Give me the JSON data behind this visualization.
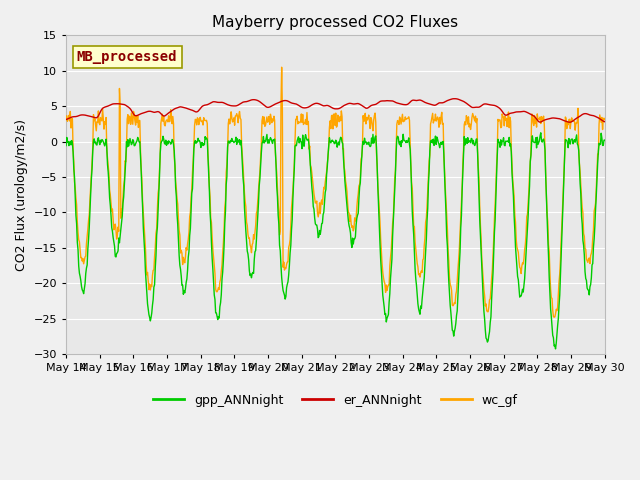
{
  "title": "Mayberry processed CO2 Fluxes",
  "ylabel": "CO2 Flux (urology/m2/s)",
  "ylim": [
    -30,
    15
  ],
  "yticks": [
    -30,
    -25,
    -20,
    -15,
    -10,
    -5,
    0,
    5,
    10,
    15
  ],
  "fig_bg_color": "#f0f0f0",
  "plot_bg_color": "#e8e8e8",
  "legend_label": "MB_processed",
  "legend_text_color": "#8b0000",
  "legend_box_facecolor": "#ffffcc",
  "legend_box_edgecolor": "#999900",
  "line_colors": {
    "gpp": "#00cc00",
    "er": "#cc0000",
    "wc": "#ffa500"
  },
  "line_width": 1.0,
  "n_days": 16,
  "start_day": 14,
  "points_per_day": 48,
  "seed": 42,
  "grid_color": "#ffffff",
  "grid_linewidth": 0.8,
  "title_fontsize": 11,
  "label_fontsize": 8,
  "ylabel_fontsize": 9,
  "legend_fontsize": 9,
  "mb_label_fontsize": 10,
  "dip_depths": [
    21,
    16,
    25,
    21,
    25,
    19,
    22,
    13,
    14,
    25,
    24,
    27,
    28,
    22,
    29,
    21
  ],
  "wc_depths": [
    17,
    13,
    21,
    17,
    21,
    15,
    18,
    10,
    12,
    21,
    19,
    23,
    24,
    18,
    25,
    17
  ],
  "er_base": [
    3.0,
    4.5,
    3.5,
    4.0,
    4.8,
    5.0,
    4.8,
    4.5,
    4.5,
    5.0,
    5.0,
    5.2,
    4.5,
    3.5,
    2.5,
    3.0
  ]
}
